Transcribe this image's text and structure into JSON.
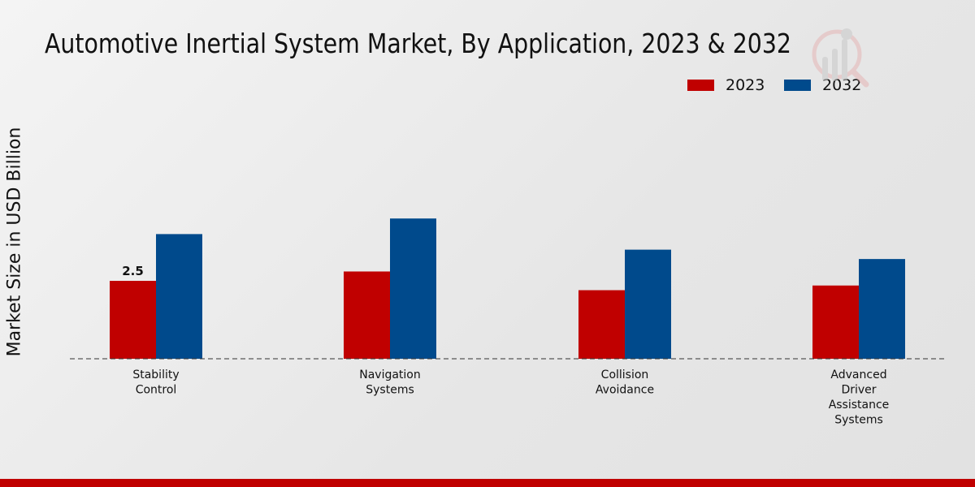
{
  "chart_data": {
    "type": "bar",
    "title": "Automotive Inertial System Market, By Application, 2023 & 2032",
    "xlabel": "",
    "ylabel": "Market Size in USD Billion",
    "categories": [
      "Stability Control",
      "Navigation Systems",
      "Collision Avoidance",
      "Advanced Driver Assistance Systems"
    ],
    "category_lines": [
      [
        "Stability",
        "Control"
      ],
      [
        "Navigation",
        "Systems"
      ],
      [
        "Collision",
        "Avoidance"
      ],
      [
        "Advanced",
        "Driver",
        "Assistance",
        "Systems"
      ]
    ],
    "series": [
      {
        "name": "2023",
        "color": "#c00000",
        "values": [
          2.5,
          2.8,
          2.2,
          2.35
        ]
      },
      {
        "name": "2032",
        "color": "#004a8c",
        "values": [
          4.0,
          4.5,
          3.5,
          3.2
        ]
      }
    ],
    "data_labels": [
      {
        "series": 0,
        "index": 0,
        "text": "2.5"
      }
    ],
    "ylim": [
      0,
      10
    ],
    "grid": false,
    "legend_position": "top-right"
  }
}
